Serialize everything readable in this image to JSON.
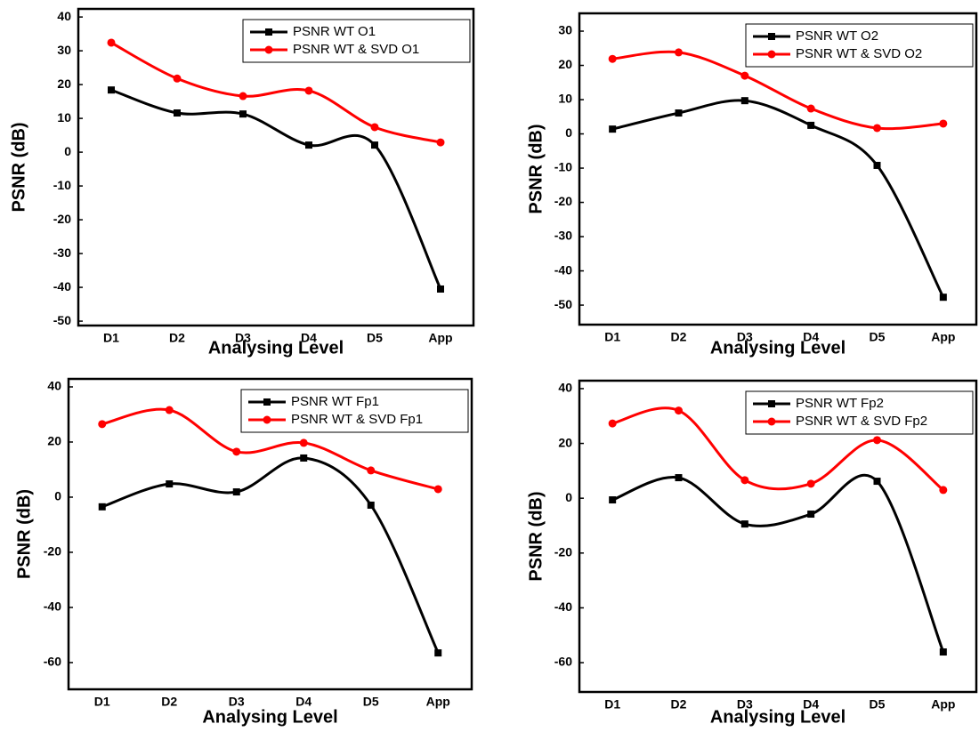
{
  "chart_data": [
    {
      "type": "line",
      "categories": [
        "D1",
        "D2",
        "D3",
        "D4",
        "D5",
        "App"
      ],
      "series": [
        {
          "name": "PSNR WT O1",
          "color": "#000000",
          "marker": "square",
          "values": [
            18.4,
            11.6,
            11.3,
            2.1,
            2.1,
            -40.5
          ]
        },
        {
          "name": "PSNR WT & SVD O1",
          "color": "#ff0000",
          "marker": "circle",
          "values": [
            32.4,
            21.8,
            16.6,
            18.2,
            7.4,
            2.9
          ]
        }
      ],
      "ylim": [
        -51.3,
        42.4
      ],
      "yticks": [
        -50,
        -40,
        -30,
        -20,
        -10,
        0,
        10,
        20,
        30,
        40
      ],
      "x_label": "Analysing Level",
      "y_label": "PSNR (dB)",
      "legend": "upper right"
    },
    {
      "type": "line",
      "categories": [
        "D1",
        "D2",
        "D3",
        "D4",
        "D5",
        "App"
      ],
      "series": [
        {
          "name": "PSNR WT O2",
          "color": "#000000",
          "marker": "square",
          "values": [
            1.4,
            6.1,
            9.7,
            2.5,
            -9.2,
            -47.7
          ]
        },
        {
          "name": "PSNR WT & SVD O2",
          "color": "#ff0000",
          "marker": "circle",
          "values": [
            21.9,
            23.8,
            17.0,
            7.4,
            1.7,
            3.0
          ]
        }
      ],
      "ylim": [
        -55.7,
        35.2
      ],
      "yticks": [
        -50,
        -40,
        -30,
        -20,
        -10,
        0,
        10,
        20,
        30
      ],
      "x_label": "Analysing Level",
      "y_label": "PSNR (dB)",
      "legend": "upper right"
    },
    {
      "type": "line",
      "categories": [
        "D1",
        "D2",
        "D3",
        "D4",
        "D5",
        "App"
      ],
      "series": [
        {
          "name": "PSNR WT Fp1",
          "color": "#000000",
          "marker": "square",
          "values": [
            -3.5,
            4.8,
            1.9,
            14.2,
            -2.9,
            -56.5
          ]
        },
        {
          "name": "PSNR WT & SVD Fp1",
          "color": "#ff0000",
          "marker": "circle",
          "values": [
            26.5,
            31.6,
            16.5,
            19.7,
            9.7,
            2.9
          ]
        }
      ],
      "ylim": [
        -69.7,
        42.9
      ],
      "yticks": [
        -60,
        -40,
        -20,
        0,
        20,
        40
      ],
      "x_label": "Analysing Level",
      "y_label": "PSNR (dB)",
      "legend": "upper right"
    },
    {
      "type": "line",
      "categories": [
        "D1",
        "D2",
        "D3",
        "D4",
        "D5",
        "App"
      ],
      "series": [
        {
          "name": "PSNR WT Fp2",
          "color": "#000000",
          "marker": "square",
          "values": [
            -0.6,
            7.5,
            -9.4,
            -5.8,
            6.2,
            -56.1
          ]
        },
        {
          "name": "PSNR WT & SVD Fp2",
          "color": "#ff0000",
          "marker": "circle",
          "values": [
            27.3,
            32.0,
            6.6,
            5.3,
            21.2,
            3.0
          ]
        }
      ],
      "ylim": [
        -70.7,
        42.9
      ],
      "yticks": [
        -60,
        -40,
        -20,
        0,
        20,
        40
      ],
      "x_label": "Analysing Level",
      "y_label": "PSNR (dB)",
      "legend": "upper right"
    }
  ]
}
